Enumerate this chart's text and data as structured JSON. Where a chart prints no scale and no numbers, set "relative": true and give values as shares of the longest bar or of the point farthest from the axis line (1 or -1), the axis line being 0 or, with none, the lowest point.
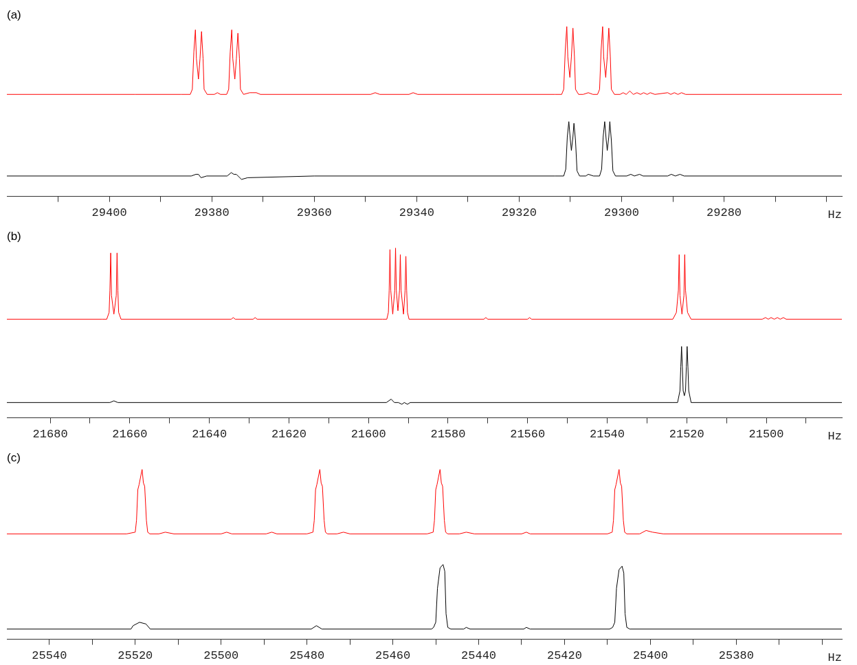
{
  "chart_data": [
    {
      "type": "line",
      "title": "(a)",
      "xlabel": "Hz",
      "relative": true,
      "marker": "none",
      "line_style": "solid",
      "xlim": [
        29420,
        29257
      ],
      "xticks": [
        {
          "value": 29410,
          "label": null
        },
        29400,
        {
          "value": 29390,
          "label": null
        },
        29380,
        {
          "value": 29370,
          "label": null
        },
        29360,
        {
          "value": 29350,
          "label": null
        },
        29340,
        {
          "value": 29330,
          "label": null
        },
        29320,
        {
          "value": 29310,
          "label": null
        },
        29300,
        {
          "value": 29290,
          "label": null
        },
        29280,
        {
          "value": 29270,
          "label": null
        },
        {
          "value": 29260,
          "label": null
        }
      ],
      "series": [
        {
          "color": "#ff0000",
          "x": [
            29420,
            29395,
            29386,
            29384.2,
            29383.8,
            29383.5,
            29383.2,
            29383.0,
            29382.6,
            29382.3,
            29382.0,
            29381.7,
            29381.5,
            29380.9,
            29379.5,
            29378.9,
            29378.3,
            29377.1,
            29376.7,
            29376.4,
            29376.1,
            29375.9,
            29375.5,
            29375.2,
            29374.9,
            29374.6,
            29374.4,
            29373.8,
            29372.6,
            29372.1,
            29371.3,
            29370.5,
            29349,
            29348.1,
            29347.2,
            29341.5,
            29340.7,
            29339.8,
            29313,
            29311.7,
            29311.3,
            29311.0,
            29310.7,
            29310.5,
            29310.1,
            29309.8,
            29309.5,
            29309.2,
            29309.0,
            29308.4,
            29307.5,
            29306.5,
            29305.6,
            29304.7,
            29304.3,
            29304.0,
            29303.7,
            29303.5,
            29303.1,
            29302.8,
            29302.5,
            29302.2,
            29302.0,
            29301.4,
            29300.3,
            29299.7,
            29299.1,
            29298.4,
            29297.7,
            29297.0,
            29296.3,
            29295.7,
            29295.0,
            29294.4,
            29293.5,
            29291.0,
            29290.4,
            29289.7,
            29289.0,
            29288.3,
            29287.5,
            29257
          ],
          "values": [
            0.6,
            0.6,
            0.6,
            0.6,
            0.63,
            0.85,
            0.98,
            0.81,
            0.69,
            0.81,
            0.97,
            0.81,
            0.63,
            0.6,
            0.6,
            0.61,
            0.6,
            0.6,
            0.63,
            0.85,
            0.98,
            0.81,
            0.69,
            0.81,
            0.96,
            0.81,
            0.63,
            0.6,
            0.61,
            0.61,
            0.61,
            0.6,
            0.6,
            0.61,
            0.6,
            0.6,
            0.61,
            0.6,
            0.6,
            0.6,
            0.63,
            0.86,
            1.0,
            0.82,
            0.7,
            0.82,
            0.99,
            0.82,
            0.63,
            0.6,
            0.6,
            0.61,
            0.6,
            0.6,
            0.63,
            0.86,
            1.0,
            0.82,
            0.7,
            0.82,
            0.99,
            0.82,
            0.63,
            0.6,
            0.6,
            0.61,
            0.6,
            0.62,
            0.6,
            0.61,
            0.6,
            0.61,
            0.6,
            0.61,
            0.6,
            0.61,
            0.6,
            0.61,
            0.6,
            0.61,
            0.6,
            0.6
          ]
        },
        {
          "color": "#000000",
          "x": [
            29420,
            29384,
            29383.1,
            29382.6,
            29382.1,
            29381,
            29377,
            29376.2,
            29375.7,
            29375.2,
            29374.2,
            29373,
            29360,
            29313,
            29311.3,
            29310.9,
            29310.6,
            29310.3,
            29310.0,
            29309.8,
            29309.5,
            29309.3,
            29309.0,
            29308.7,
            29308.2,
            29307,
            29306.5,
            29305.5,
            29304.3,
            29303.9,
            29303.6,
            29303.3,
            29303.0,
            29302.8,
            29302.5,
            29302.3,
            29302.0,
            29301.7,
            29301.2,
            29299,
            29298.2,
            29297.5,
            29296.5,
            29295.8,
            29291,
            29290.3,
            29289.5,
            29288.6,
            29287.8,
            29257
          ],
          "values": [
            0.12,
            0.12,
            0.13,
            0.13,
            0.11,
            0.12,
            0.12,
            0.14,
            0.13,
            0.13,
            0.1,
            0.11,
            0.12,
            0.12,
            0.12,
            0.16,
            0.35,
            0.44,
            0.33,
            0.27,
            0.35,
            0.43,
            0.33,
            0.15,
            0.12,
            0.12,
            0.13,
            0.12,
            0.12,
            0.16,
            0.35,
            0.44,
            0.33,
            0.27,
            0.35,
            0.44,
            0.33,
            0.15,
            0.12,
            0.12,
            0.13,
            0.12,
            0.13,
            0.12,
            0.12,
            0.13,
            0.12,
            0.13,
            0.12,
            0.12
          ]
        }
      ]
    },
    {
      "type": "line",
      "title": "(b)",
      "xlabel": "Hz",
      "relative": true,
      "marker": "none",
      "line_style": "solid",
      "xlim": [
        21690.9,
        21481
      ],
      "xticks": [
        21680,
        {
          "value": 21670,
          "label": null
        },
        21660,
        {
          "value": 21650,
          "label": null
        },
        21640,
        {
          "value": 21630,
          "label": null
        },
        21620,
        {
          "value": 21610,
          "label": null
        },
        21600,
        {
          "value": 21590,
          "label": null
        },
        21580,
        {
          "value": 21570,
          "label": null
        },
        21560,
        {
          "value": 21550,
          "label": null
        },
        21540,
        {
          "value": 21530,
          "label": null
        },
        21520,
        {
          "value": 21510,
          "label": null
        },
        21500,
        {
          "value": 21490,
          "label": null
        }
      ],
      "series": [
        {
          "color": "#ff0000",
          "x": [
            21690.9,
            21667,
            21665.8,
            21665.2,
            21665.0,
            21664.8,
            21664.6,
            21664.0,
            21663.4,
            21663.2,
            21663.0,
            21662.8,
            21662.2,
            21634.5,
            21634.0,
            21633.5,
            21629,
            21628.5,
            21628,
            21596.5,
            21595.4,
            21595.0,
            21594.8,
            21594.6,
            21594.4,
            21593.9,
            21593.4,
            21593.2,
            21593.0,
            21592.6,
            21592.2,
            21592.0,
            21591.8,
            21591.2,
            21590.8,
            21590.6,
            21590.4,
            21590.2,
            21589.8,
            21571,
            21570.5,
            21570,
            21560,
            21559.5,
            21559,
            21523.5,
            21522.6,
            21522.1,
            21521.9,
            21521.7,
            21521.2,
            21520.7,
            21520.5,
            21520.3,
            21519.8,
            21518.9,
            21501,
            21500.2,
            21499.5,
            21498.8,
            21498,
            21497.2,
            21496.5,
            21495.7,
            21495,
            21481
          ],
          "values": [
            0.58,
            0.58,
            0.58,
            0.62,
            0.75,
            0.97,
            0.72,
            0.61,
            0.72,
            0.97,
            0.75,
            0.62,
            0.58,
            0.58,
            0.59,
            0.58,
            0.58,
            0.59,
            0.58,
            0.58,
            0.58,
            0.62,
            0.75,
            0.99,
            0.75,
            0.61,
            0.75,
            1.0,
            0.75,
            0.63,
            0.75,
            0.96,
            0.75,
            0.61,
            0.75,
            0.95,
            0.75,
            0.62,
            0.58,
            0.58,
            0.59,
            0.58,
            0.58,
            0.59,
            0.58,
            0.58,
            0.62,
            0.75,
            0.96,
            0.72,
            0.61,
            0.72,
            0.96,
            0.75,
            0.62,
            0.58,
            0.58,
            0.59,
            0.58,
            0.59,
            0.58,
            0.59,
            0.58,
            0.59,
            0.58,
            0.58
          ]
        },
        {
          "color": "#000000",
          "x": [
            21690.9,
            21665,
            21664,
            21663,
            21595.5,
            21594.3,
            21593.5,
            21592.5,
            21591.6,
            21591,
            21590.2,
            21589.5,
            21523.5,
            21522.3,
            21521.7,
            21521.5,
            21521.3,
            21521.1,
            21520.9,
            21520.6,
            21520.3,
            21520.1,
            21519.9,
            21519.7,
            21519.5,
            21518.9,
            21481
          ],
          "values": [
            0.09,
            0.09,
            0.1,
            0.09,
            0.09,
            0.11,
            0.09,
            0.09,
            0.08,
            0.09,
            0.08,
            0.09,
            0.09,
            0.09,
            0.16,
            0.3,
            0.42,
            0.3,
            0.16,
            0.13,
            0.16,
            0.3,
            0.42,
            0.3,
            0.16,
            0.09,
            0.09
          ]
        }
      ]
    },
    {
      "type": "line",
      "title": "(c)",
      "xlabel": "Hz",
      "relative": true,
      "marker": "none",
      "line_style": "solid",
      "xlim": [
        25549.9,
        25355.4
      ],
      "xticks": [
        25540,
        {
          "value": 25530,
          "label": null
        },
        25520,
        {
          "value": 25510,
          "label": null
        },
        25500,
        {
          "value": 25490,
          "label": null
        },
        25480,
        {
          "value": 25470,
          "label": null
        },
        25460,
        {
          "value": 25450,
          "label": null
        },
        25440,
        {
          "value": 25430,
          "label": null
        },
        25420,
        {
          "value": 25410,
          "label": null
        },
        25400,
        {
          "value": 25390,
          "label": null
        },
        25380,
        {
          "value": 25370,
          "label": null
        },
        {
          "value": 25360,
          "label": null
        }
      ],
      "series": [
        {
          "color": "#ff0000",
          "x": [
            25549.9,
            25522,
            25520.0,
            25519.7,
            25519.4,
            25519.1,
            25518.4,
            25518.1,
            25517.8,
            25517.4,
            25517.1,
            25516.6,
            25514.5,
            25513.0,
            25511,
            25500,
            25498.7,
            25497.5,
            25489.5,
            25488.2,
            25487,
            25480,
            25478.6,
            25478.3,
            25478.0,
            25477.7,
            25477.0,
            25476.7,
            25476.4,
            25476.0,
            25475.7,
            25475.2,
            25473,
            25471.5,
            25470,
            25452,
            25450.6,
            25450.3,
            25450.0,
            25449.7,
            25449.0,
            25448.7,
            25448.4,
            25448.0,
            25447.7,
            25447.2,
            25444.5,
            25442.9,
            25441,
            25430,
            25428.9,
            25428,
            25410,
            25408.9,
            25408.6,
            25408.3,
            25408.0,
            25407.3,
            25407.0,
            25406.7,
            25406.3,
            25406.0,
            25405.5,
            25402.5,
            25401,
            25399.5,
            25397,
            25355.4
          ],
          "values": [
            0.62,
            0.62,
            0.63,
            0.7,
            0.88,
            0.91,
            1.0,
            0.92,
            0.9,
            0.7,
            0.63,
            0.62,
            0.62,
            0.63,
            0.62,
            0.62,
            0.63,
            0.62,
            0.62,
            0.63,
            0.62,
            0.62,
            0.63,
            0.7,
            0.88,
            0.91,
            1.0,
            0.92,
            0.9,
            0.7,
            0.63,
            0.62,
            0.62,
            0.63,
            0.62,
            0.62,
            0.63,
            0.7,
            0.88,
            0.91,
            1.0,
            0.92,
            0.9,
            0.7,
            0.63,
            0.62,
            0.62,
            0.63,
            0.62,
            0.62,
            0.63,
            0.62,
            0.62,
            0.63,
            0.7,
            0.88,
            0.91,
            1.0,
            0.92,
            0.9,
            0.7,
            0.63,
            0.62,
            0.62,
            0.64,
            0.63,
            0.62,
            0.62
          ]
        },
        {
          "color": "#000000",
          "x": [
            25549.9,
            25521,
            25520.5,
            25519.0,
            25517.5,
            25516.5,
            25479,
            25477.8,
            25476.5,
            25451,
            25450.5,
            25450.0,
            25449.6,
            25449.0,
            25448.3,
            25447.9,
            25447.6,
            25447.2,
            25446.5,
            25443.5,
            25442.9,
            25442,
            25429.5,
            25428.9,
            25428,
            25409.5,
            25408.8,
            25408.3,
            25407.9,
            25407.3,
            25406.6,
            25406.2,
            25405.9,
            25405.5,
            25404.8,
            25355.4
          ],
          "values": [
            0.06,
            0.06,
            0.08,
            0.1,
            0.09,
            0.06,
            0.06,
            0.08,
            0.06,
            0.06,
            0.07,
            0.1,
            0.3,
            0.42,
            0.44,
            0.4,
            0.15,
            0.07,
            0.06,
            0.06,
            0.07,
            0.06,
            0.06,
            0.07,
            0.06,
            0.06,
            0.07,
            0.1,
            0.3,
            0.41,
            0.43,
            0.39,
            0.15,
            0.07,
            0.06,
            0.06
          ]
        }
      ]
    }
  ]
}
